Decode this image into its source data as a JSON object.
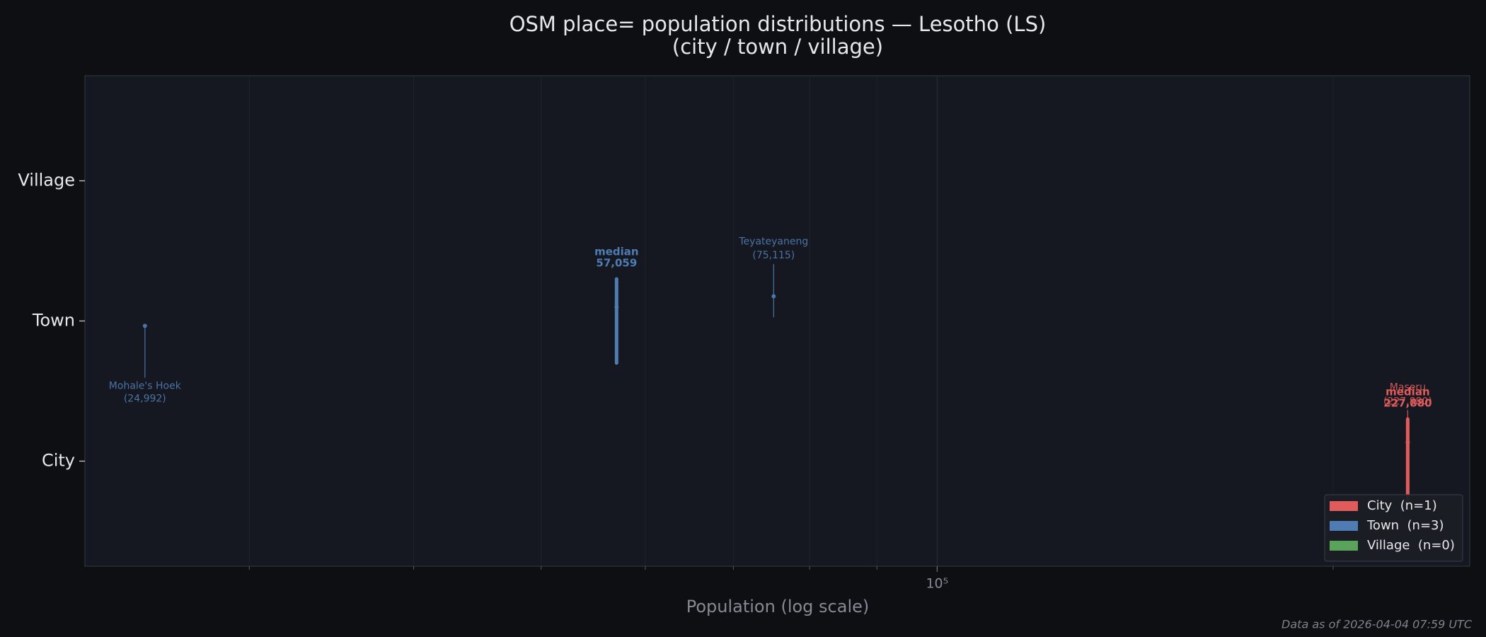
{
  "chart_data": {
    "type": "strip",
    "title": "OSM place= population distributions — Lesotho (LS)",
    "subtitle": "(city / town / village)",
    "xlabel": "Population (log scale)",
    "footnote": "Data as of 2026-04-04 07:59 UTC",
    "median_text": "median",
    "log_x": true,
    "grid": true,
    "legend": "lower right",
    "categories": [
      "City",
      "Town",
      "Village"
    ],
    "ylim": [
      -0.75,
      2.75
    ],
    "xlim": [
      22500,
      254000
    ],
    "xticks": [
      {
        "value": 100000,
        "label": "10⁵"
      }
    ],
    "xminorticks": [
      30000,
      40000,
      50000,
      60000,
      70000,
      80000,
      90000,
      200000
    ],
    "series": [
      {
        "name": "City  (n=1)",
        "color": "#e05c5c",
        "values": [
          227880
        ],
        "point_names": [
          "Maseru"
        ],
        "value_labels": [
          "(227,880)"
        ],
        "median": 227880,
        "median_label": "227,880"
      },
      {
        "name": "Town  (n=3)",
        "color": "#4f7db3",
        "values": [
          24992,
          57059,
          75115
        ],
        "point_names": [
          "Mohale's Hoek",
          null,
          "Teyateyaneng"
        ],
        "value_labels": [
          "(24,992)",
          null,
          "(75,115)"
        ],
        "median": 57059,
        "median_label": "57,059"
      },
      {
        "name": "Village  (n=0)",
        "color": "#5aa35a",
        "values": [],
        "point_names": [],
        "value_labels": []
      }
    ]
  }
}
